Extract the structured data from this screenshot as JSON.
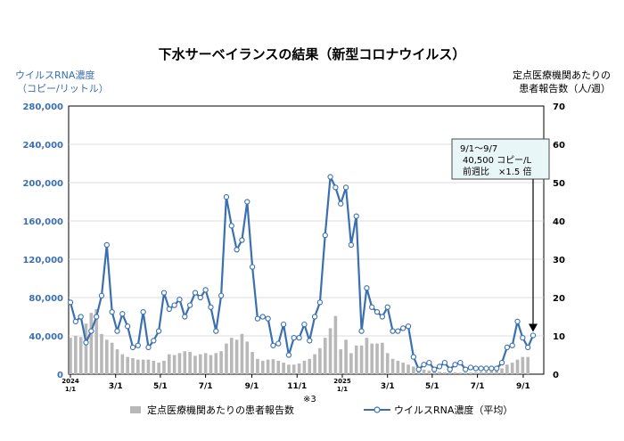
{
  "chart_data": {
    "type": "bar+line",
    "title": "下水サーベイランスの結果（新型コロナウイルス）",
    "ylabel_left": [
      "ウイルスRNA濃度",
      "（コピー/リットル）"
    ],
    "ylabel_right": [
      "定点医療機関あたりの",
      "患者報告数（人/週）"
    ],
    "ylim_left": [
      0,
      280000
    ],
    "ylim_right": [
      0,
      70
    ],
    "yticks_left": [
      "0",
      "40,000",
      "80,000",
      "120,000",
      "160,000",
      "200,000",
      "240,000",
      "280,000"
    ],
    "yticks_right": [
      "0",
      "10",
      "20",
      "30",
      "40",
      "50",
      "60",
      "70"
    ],
    "x_tick_labels": [
      {
        "week": 0,
        "lines": [
          "2024",
          "1/1"
        ]
      },
      {
        "week": 8.7,
        "lines": [
          "3/1"
        ]
      },
      {
        "week": 17.3,
        "lines": [
          "5/1"
        ]
      },
      {
        "week": 26,
        "lines": [
          "7/1"
        ]
      },
      {
        "week": 34.9,
        "lines": [
          "9/1"
        ]
      },
      {
        "week": 43.6,
        "lines": [
          "11/1"
        ]
      },
      {
        "week": 52.3,
        "lines": [
          "2025",
          "1/1"
        ]
      },
      {
        "week": 61,
        "lines": [
          "3/1"
        ]
      },
      {
        "week": 69.6,
        "lines": [
          "5/1"
        ]
      },
      {
        "week": 78.3,
        "lines": [
          "7/1"
        ]
      },
      {
        "week": 87.1,
        "lines": [
          "9/1"
        ]
      }
    ],
    "footnote": "※3",
    "series": [
      {
        "name": "定点医療機関あたりの患者報告数",
        "type": "bar",
        "axis": "right",
        "color": "#b8b8b8",
        "values": [
          9.5,
          10,
          9.7,
          13.2,
          16,
          17,
          10.5,
          9,
          8.2,
          6.5,
          5.2,
          4.5,
          4.2,
          3.8,
          3.8,
          3.8,
          3.5,
          3,
          3.5,
          5.2,
          5,
          5.5,
          6,
          5.8,
          4.8,
          5.2,
          5.5,
          5,
          5.5,
          6,
          8,
          9.5,
          9,
          10.5,
          8.5,
          5.8,
          4,
          3.5,
          3.8,
          3.9,
          3.5,
          3,
          2.5,
          2.5,
          2.8,
          3.5,
          4,
          5.2,
          6.8,
          9.5,
          12,
          15.2,
          6.5,
          9,
          5.5,
          7.5,
          7.5,
          9.5,
          8,
          8,
          8.2,
          5.5,
          4,
          3.5,
          3,
          2.5,
          2,
          1.5,
          1.2,
          0.9,
          0.8,
          0.6,
          0.5,
          0.6,
          0.5,
          0.4,
          0.4,
          0.4,
          0.5,
          0.6,
          0.7,
          0.8,
          1,
          1.5,
          2.5,
          3,
          3.8,
          4.5,
          4.5
        ]
      },
      {
        "name": "ウイルスRNA濃度（平均）",
        "type": "line",
        "axis": "left",
        "color": "#3a6fb0",
        "values": [
          75000,
          55000,
          60000,
          33000,
          45000,
          60000,
          82000,
          135000,
          65000,
          45000,
          63000,
          50000,
          28000,
          30000,
          65000,
          28000,
          35000,
          45000,
          85000,
          68000,
          72000,
          78000,
          60000,
          72000,
          85000,
          80000,
          88000,
          70000,
          45000,
          82000,
          185000,
          155000,
          130000,
          140000,
          180000,
          112000,
          58000,
          60000,
          58000,
          30000,
          32000,
          52000,
          20000,
          38000,
          38000,
          52000,
          35000,
          60000,
          75000,
          145000,
          206000,
          195000,
          178000,
          195000,
          135000,
          165000,
          45000,
          90000,
          70000,
          65000,
          60000,
          70000,
          45000,
          45000,
          48000,
          50000,
          18000,
          5000,
          10000,
          12000,
          5000,
          8000,
          12000,
          5000,
          10000,
          12000,
          5000,
          7000,
          6000,
          6000,
          6000,
          6000,
          6000,
          12000,
          28000,
          30000,
          55000,
          38000,
          28000,
          40500
        ]
      }
    ],
    "legend": {
      "placement": "bottom-center"
    },
    "annotation": {
      "lines": [
        "9/1～9/7",
        "40,500 コピー/L",
        "前週比　×1.5 倍"
      ],
      "box_color": "#e8f6f8"
    }
  }
}
